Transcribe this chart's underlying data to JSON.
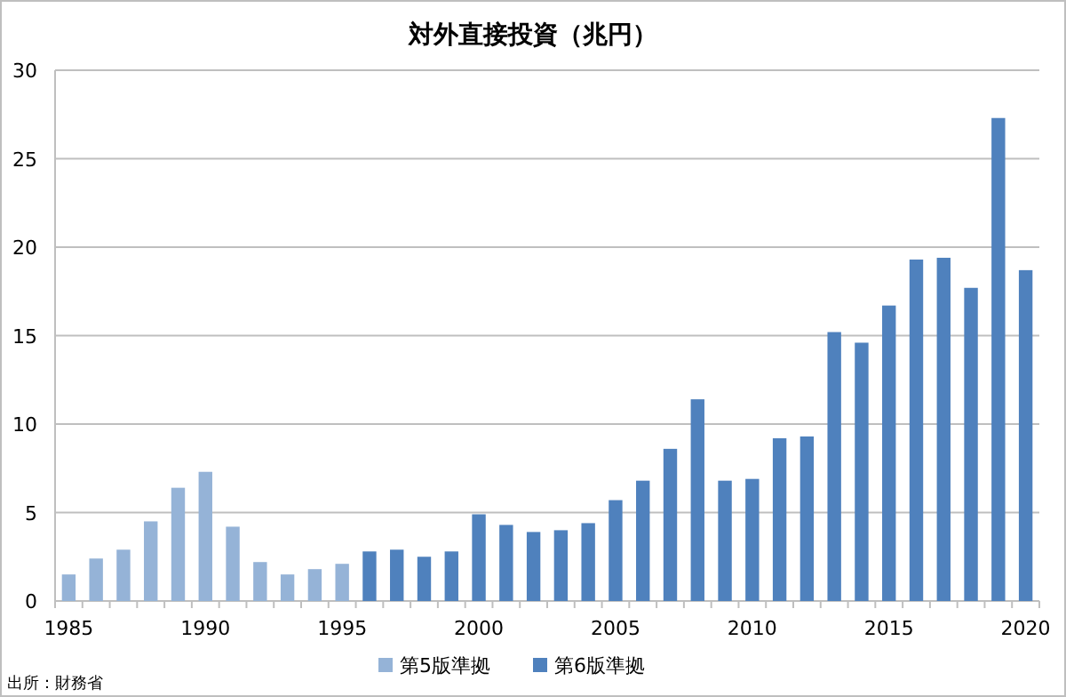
{
  "chart_data": {
    "type": "bar",
    "title": "対外直接投資（兆円）",
    "series": [
      {
        "name": "第5版準拠",
        "color": "#95b3d7",
        "x": [
          1985,
          1986,
          1987,
          1988,
          1989,
          1990,
          1991,
          1992,
          1993,
          1994,
          1995
        ],
        "values": [
          1.5,
          2.4,
          2.9,
          4.5,
          6.4,
          7.3,
          4.2,
          2.2,
          1.5,
          1.8,
          2.1
        ]
      },
      {
        "name": "第6版準拠",
        "color": "#4f81bd",
        "x": [
          1996,
          1997,
          1998,
          1999,
          2000,
          2001,
          2002,
          2003,
          2004,
          2005,
          2006,
          2007,
          2008,
          2009,
          2010,
          2011,
          2012,
          2013,
          2014,
          2015,
          2016,
          2017,
          2018,
          2019,
          2020
        ],
        "values": [
          2.8,
          2.9,
          2.5,
          2.8,
          4.9,
          4.3,
          3.9,
          4.0,
          4.4,
          5.7,
          6.8,
          8.6,
          11.4,
          6.8,
          6.9,
          9.2,
          9.3,
          15.2,
          14.6,
          16.7,
          19.3,
          19.4,
          17.7,
          27.3,
          18.7
        ]
      }
    ],
    "xlim": [
      1984.5,
      2020.5
    ],
    "xticks": [
      1985,
      1990,
      1995,
      2000,
      2005,
      2010,
      2015,
      2020
    ],
    "ylim": [
      0,
      30
    ],
    "yticks": [
      0,
      5,
      10,
      15,
      20,
      25,
      30
    ],
    "grid": "y",
    "legend": "bottom",
    "annotations": [
      "出所：財務省"
    ]
  }
}
